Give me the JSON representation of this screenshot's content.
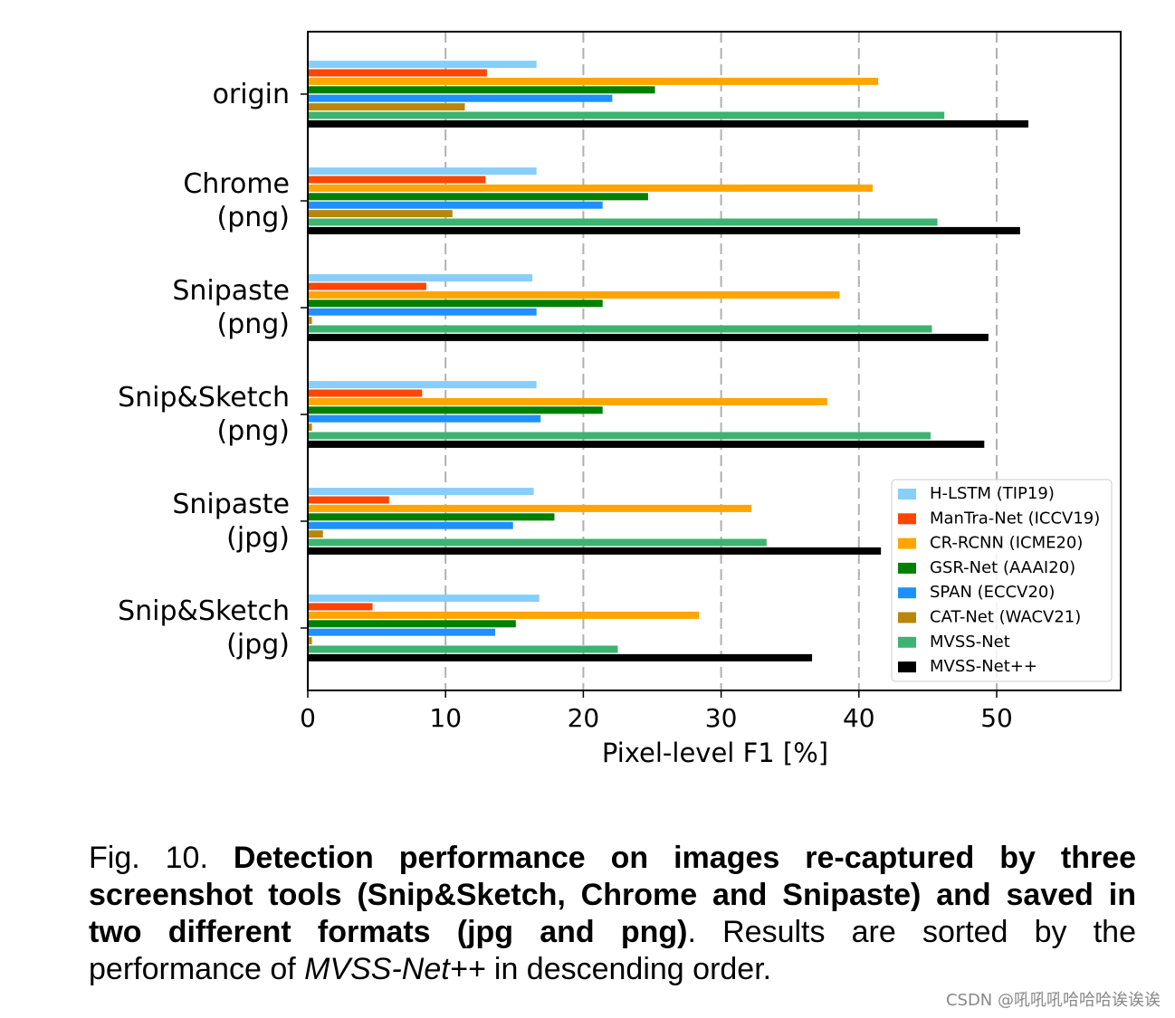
{
  "chart_data": {
    "type": "barh",
    "xlabel": "Pixel-level F1 [%]",
    "categories": [
      "origin",
      "Chrome\n(png)",
      "Snipaste\n(png)",
      "Snip&Sketch\n(png)",
      "Snipaste\n(jpg)",
      "Snip&Sketch\n(jpg)"
    ],
    "series": [
      {
        "name": "H-LSTM (TIP19)",
        "color": "#87cefa",
        "values": [
          16.6,
          16.6,
          16.3,
          16.6,
          16.4,
          16.8
        ]
      },
      {
        "name": "ManTra-Net (ICCV19)",
        "color": "#ff4500",
        "values": [
          13.0,
          12.9,
          8.6,
          8.3,
          5.9,
          4.7
        ]
      },
      {
        "name": "CR-RCNN (ICME20)",
        "color": "#ffa500",
        "values": [
          41.4,
          41.0,
          38.6,
          37.7,
          32.2,
          28.4
        ]
      },
      {
        "name": "GSR-Net (AAAI20)",
        "color": "#008000",
        "values": [
          25.2,
          24.7,
          21.4,
          21.4,
          17.9,
          15.1
        ]
      },
      {
        "name": "SPAN (ECCV20)",
        "color": "#1e90ff",
        "values": [
          22.1,
          21.4,
          16.6,
          16.9,
          14.9,
          13.6
        ]
      },
      {
        "name": "CAT-Net (WACV21)",
        "color": "#b8860b",
        "values": [
          11.4,
          10.5,
          0.3,
          0.3,
          1.1,
          0.3
        ]
      },
      {
        "name": "MVSS-Net",
        "color": "#3cb371",
        "values": [
          46.2,
          45.7,
          45.3,
          45.2,
          33.3,
          22.5
        ]
      },
      {
        "name": "MVSS-Net++",
        "color": "#000000",
        "values": [
          52.3,
          51.7,
          49.4,
          49.1,
          41.6,
          36.6
        ]
      }
    ],
    "xlim": [
      0,
      59
    ],
    "xticks": [
      0,
      10,
      20,
      30,
      40,
      50
    ],
    "grid": true,
    "legend": "lower right"
  },
  "caption": {
    "label": "Fig. 10.",
    "bold": "Detection performance on images re-captured by three screenshot tools (Snip&Sketch, Chrome and Snipaste) and saved in two different formats (jpg and png)",
    "text": ". Results are sorted by the performance of",
    "italic": "MVSS-Net++",
    "end": "in descending order."
  },
  "watermark": "CSDN @吼吼吼哈哈哈诶诶诶"
}
